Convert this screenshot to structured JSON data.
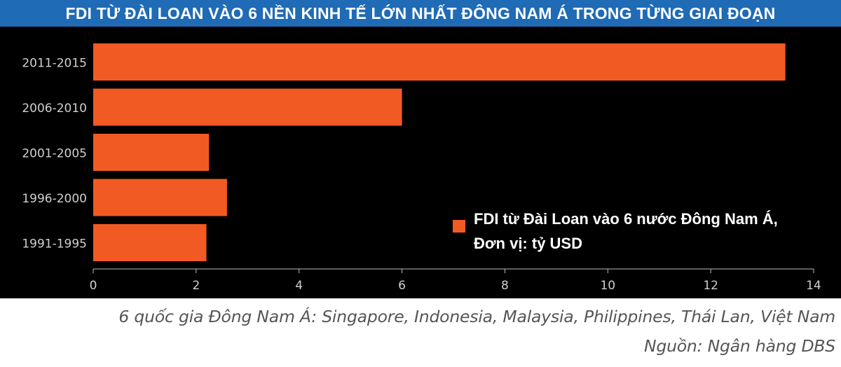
{
  "header": {
    "title": "FDI TỪ ĐÀI LOAN VÀO 6 NỀN KINH TẾ LỚN NHẤT ĐÔNG NAM Á TRONG TỪNG GIAI ĐOẠN"
  },
  "colors": {
    "bar": "#f15a22",
    "background": "#000000",
    "banner": "#1f6bb5",
    "axis_text": "#cfcfcf"
  },
  "chart_data": {
    "type": "bar",
    "orientation": "horizontal",
    "categories": [
      "2011-2015",
      "2006-2010",
      "2001-2005",
      "1996-2000",
      "1991-1995"
    ],
    "values": [
      13.45,
      6.0,
      2.25,
      2.6,
      2.2
    ],
    "xlim": [
      0,
      14
    ],
    "xticks": [
      0,
      2,
      4,
      6,
      8,
      10,
      12,
      14
    ],
    "legend": {
      "position": "bottom-right",
      "lines": [
        "FDI từ Đài Loan vào 6 nước Đông Nam Á,",
        "Đơn vị: tỷ USD"
      ]
    },
    "grid": false
  },
  "footer": {
    "note": "6 quốc gia Đông Nam Á: Singapore, Indonesia, Malaysia, Philippines, Thái Lan, Việt Nam",
    "source": "Nguồn: Ngân hàng DBS"
  }
}
